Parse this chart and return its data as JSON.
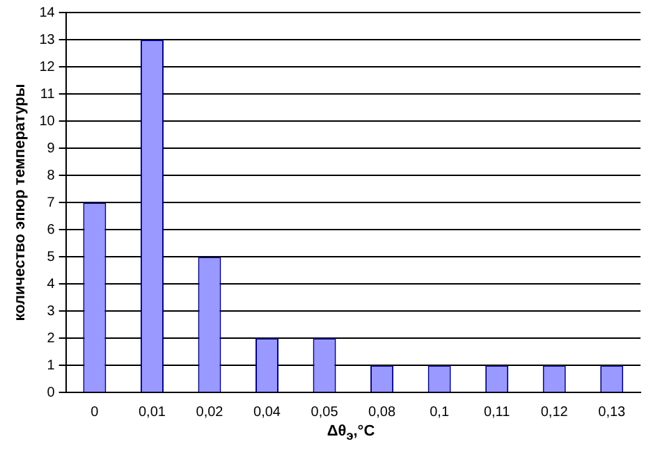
{
  "chart_data": {
    "type": "bar",
    "xlabel": "Δθ$_{э}$,°C",
    "ylabel": "количество эпюр температуры",
    "categories": [
      "0",
      "0,01",
      "0,02",
      "0,04",
      "0,05",
      "0,08",
      "0,1",
      "0,11",
      "0,12",
      "0,13"
    ],
    "values": [
      7,
      13,
      5,
      2,
      2,
      1,
      1,
      1,
      1,
      1
    ],
    "color": "#9999ff",
    "ylim": [
      0,
      14
    ],
    "yticks": [
      0,
      1,
      2,
      3,
      4,
      5,
      6,
      7,
      8,
      9,
      10,
      11,
      12,
      13,
      14
    ],
    "grid": "y",
    "legend": false
  }
}
